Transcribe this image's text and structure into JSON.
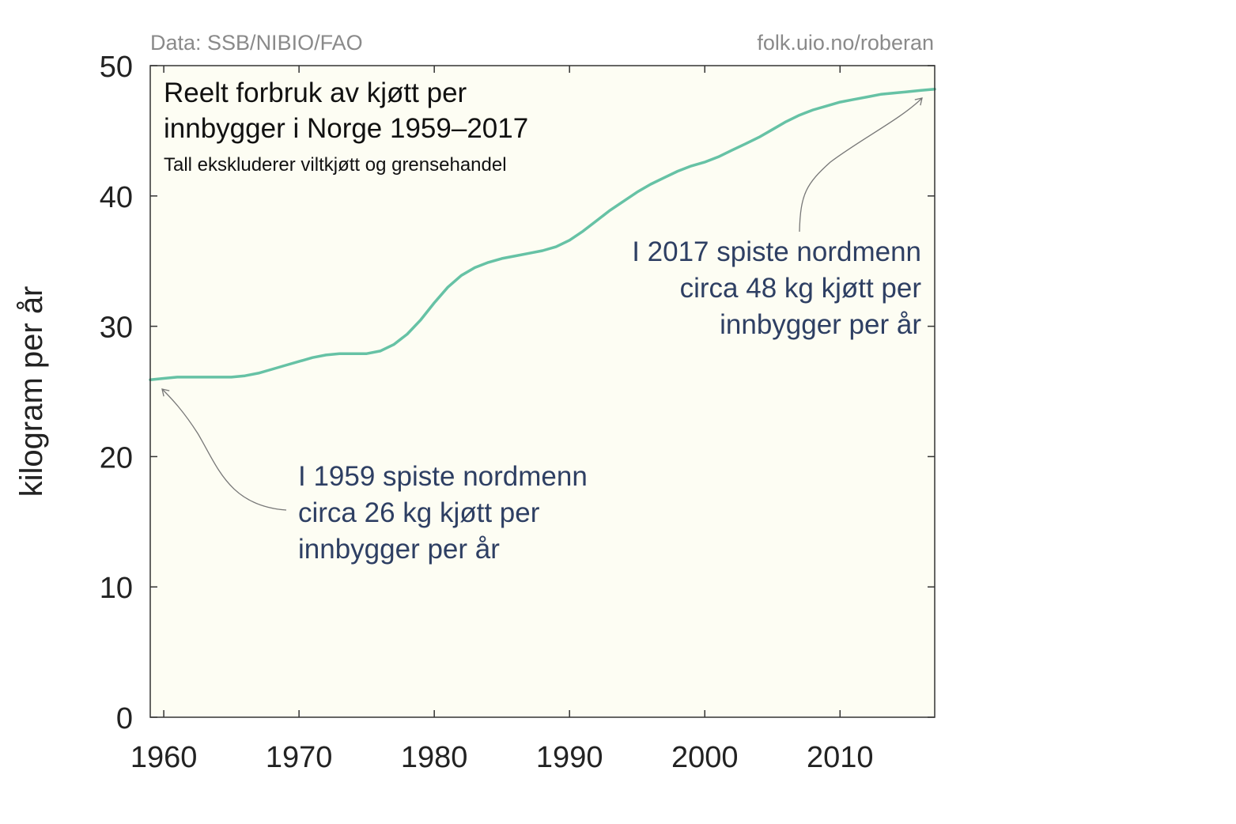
{
  "source_left": "Data: SSB/NIBIO/FAO",
  "source_right": "folk.uio.no/roberan",
  "colors": {
    "plot_bg": "#fdfdf3",
    "line": "#66c2a5",
    "axis": "#333333",
    "annotation_text": "#2e3f63",
    "source_text": "#8a8a8a",
    "arrow": "#777777"
  },
  "chart_data": {
    "type": "line",
    "title_lines": [
      "Reelt forbruk av kjøtt per",
      "innbygger i Norge 1959–2017"
    ],
    "subtitle": "Tall ekskluderer viltkjøtt og grensehandel",
    "xlabel": "",
    "ylabel": "kilogram per år",
    "xlim": [
      1959,
      2017
    ],
    "ylim": [
      0,
      50
    ],
    "xticks": [
      1960,
      1970,
      1980,
      1990,
      2000,
      2010
    ],
    "yticks": [
      0,
      10,
      20,
      30,
      40,
      50
    ],
    "grid": false,
    "series": [
      {
        "x": [
          1959,
          1960,
          1961,
          1962,
          1963,
          1964,
          1965,
          1966,
          1967,
          1968,
          1969,
          1970,
          1971,
          1972,
          1973,
          1974,
          1975,
          1976,
          1977,
          1978,
          1979,
          1980,
          1981,
          1982,
          1983,
          1984,
          1985,
          1986,
          1987,
          1988,
          1989,
          1990,
          1991,
          1992,
          1993,
          1994,
          1995,
          1996,
          1997,
          1998,
          1999,
          2000,
          2001,
          2002,
          2003,
          2004,
          2005,
          2006,
          2007,
          2008,
          2009,
          2010,
          2011,
          2012,
          2013,
          2014,
          2015,
          2016,
          2017
        ],
        "y": [
          25.9,
          26.0,
          26.1,
          26.1,
          26.1,
          26.1,
          26.1,
          26.2,
          26.4,
          26.7,
          27.0,
          27.3,
          27.6,
          27.8,
          27.9,
          27.9,
          27.9,
          28.1,
          28.6,
          29.4,
          30.5,
          31.8,
          33.0,
          33.9,
          34.5,
          34.9,
          35.2,
          35.4,
          35.6,
          35.8,
          36.1,
          36.6,
          37.3,
          38.1,
          38.9,
          39.6,
          40.3,
          40.9,
          41.4,
          41.9,
          42.3,
          42.6,
          43.0,
          43.5,
          44.0,
          44.5,
          45.1,
          45.7,
          46.2,
          46.6,
          46.9,
          47.2,
          47.4,
          47.6,
          47.8,
          47.9,
          48.0,
          48.1,
          48.2
        ]
      }
    ],
    "annotations": [
      {
        "lines": [
          "I 1959 spiste nordmenn",
          "circa 26 kg kjøtt per",
          "innbygger per år"
        ],
        "points_to": {
          "x": 1959,
          "y": 25.9
        }
      },
      {
        "lines": [
          "I 2017 spiste nordmenn",
          "circa 48 kg kjøtt per",
          "innbygger per år"
        ],
        "points_to": {
          "x": 2017,
          "y": 48.2
        }
      }
    ]
  }
}
